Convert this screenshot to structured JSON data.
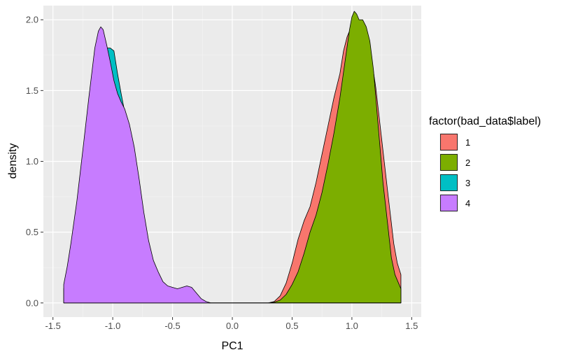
{
  "chart_data": {
    "type": "area",
    "title": "",
    "xlabel": "PC1",
    "ylabel": "density",
    "xlim": [
      -1.58,
      1.58
    ],
    "ylim": [
      -0.1,
      2.1
    ],
    "x_ticks": [
      -1.5,
      -1.0,
      -0.5,
      0.0,
      0.5,
      1.0,
      1.5
    ],
    "x_tick_labels": [
      "-1.5",
      "-1.0",
      "-0.5",
      "0.0",
      "0.5",
      "1.0",
      "1.5"
    ],
    "y_ticks": [
      0.0,
      0.5,
      1.0,
      1.5,
      2.0
    ],
    "y_tick_labels": [
      "0.0",
      "0.5",
      "1.0",
      "1.5",
      "2.0"
    ],
    "grid": true,
    "background": "#ebebeb",
    "legend": {
      "title": "factor(bad_data$label)",
      "position": "right"
    },
    "series": [
      {
        "name": "1",
        "color": "#F8766D",
        "points": [
          [
            -1.41,
            0
          ],
          [
            0.3,
            0
          ],
          [
            0.35,
            0.01
          ],
          [
            0.4,
            0.05
          ],
          [
            0.45,
            0.14
          ],
          [
            0.5,
            0.28
          ],
          [
            0.55,
            0.45
          ],
          [
            0.6,
            0.58
          ],
          [
            0.65,
            0.68
          ],
          [
            0.7,
            0.85
          ],
          [
            0.75,
            1.05
          ],
          [
            0.8,
            1.25
          ],
          [
            0.85,
            1.45
          ],
          [
            0.9,
            1.62
          ],
          [
            0.93,
            1.78
          ],
          [
            0.96,
            1.88
          ],
          [
            1.0,
            1.96
          ],
          [
            1.03,
            2.0
          ],
          [
            1.06,
            2.0
          ],
          [
            1.1,
            1.97
          ],
          [
            1.13,
            1.9
          ],
          [
            1.16,
            1.75
          ],
          [
            1.2,
            1.52
          ],
          [
            1.25,
            1.15
          ],
          [
            1.3,
            0.78
          ],
          [
            1.35,
            0.42
          ],
          [
            1.38,
            0.28
          ],
          [
            1.41,
            0.2
          ]
        ]
      },
      {
        "name": "2",
        "color": "#7CAE00",
        "points": [
          [
            -1.41,
            0
          ],
          [
            0.3,
            0
          ],
          [
            0.35,
            0.005
          ],
          [
            0.4,
            0.02
          ],
          [
            0.45,
            0.06
          ],
          [
            0.5,
            0.13
          ],
          [
            0.55,
            0.22
          ],
          [
            0.6,
            0.35
          ],
          [
            0.65,
            0.5
          ],
          [
            0.7,
            0.62
          ],
          [
            0.75,
            0.78
          ],
          [
            0.8,
            0.98
          ],
          [
            0.85,
            1.2
          ],
          [
            0.9,
            1.45
          ],
          [
            0.95,
            1.75
          ],
          [
            0.98,
            1.93
          ],
          [
            1.0,
            2.02
          ],
          [
            1.02,
            2.06
          ],
          [
            1.04,
            2.04
          ],
          [
            1.06,
            2.0
          ],
          [
            1.09,
            2.0
          ],
          [
            1.12,
            1.95
          ],
          [
            1.15,
            1.85
          ],
          [
            1.18,
            1.65
          ],
          [
            1.2,
            1.45
          ],
          [
            1.23,
            1.15
          ],
          [
            1.26,
            0.85
          ],
          [
            1.3,
            0.55
          ],
          [
            1.33,
            0.32
          ],
          [
            1.36,
            0.2
          ],
          [
            1.39,
            0.14
          ],
          [
            1.41,
            0.1
          ]
        ]
      },
      {
        "name": "3",
        "color": "#00BFC4",
        "points": [
          [
            -1.41,
            0.1
          ],
          [
            -1.38,
            0.22
          ],
          [
            -1.35,
            0.4
          ],
          [
            -1.3,
            0.68
          ],
          [
            -1.25,
            0.98
          ],
          [
            -1.2,
            1.3
          ],
          [
            -1.15,
            1.6
          ],
          [
            -1.12,
            1.74
          ],
          [
            -1.1,
            1.8
          ],
          [
            -1.08,
            1.82
          ],
          [
            -1.05,
            1.8
          ],
          [
            -1.02,
            1.8
          ],
          [
            -0.99,
            1.78
          ],
          [
            -0.96,
            1.62
          ],
          [
            -0.93,
            1.48
          ],
          [
            -0.9,
            1.35
          ],
          [
            -0.86,
            1.2
          ],
          [
            -0.82,
            1.02
          ],
          [
            -0.78,
            0.82
          ],
          [
            -0.74,
            0.62
          ],
          [
            -0.7,
            0.42
          ],
          [
            -0.66,
            0.26
          ],
          [
            -0.62,
            0.17
          ],
          [
            -0.58,
            0.12
          ],
          [
            -0.54,
            0.08
          ],
          [
            -0.5,
            0.05
          ],
          [
            -0.45,
            0.02
          ],
          [
            -0.4,
            0.01
          ],
          [
            -0.3,
            0
          ],
          [
            1.41,
            0
          ]
        ]
      },
      {
        "name": "4",
        "color": "#C77CFF",
        "points": [
          [
            -1.41,
            0.13
          ],
          [
            -1.38,
            0.26
          ],
          [
            -1.35,
            0.42
          ],
          [
            -1.3,
            0.72
          ],
          [
            -1.25,
            1.08
          ],
          [
            -1.2,
            1.45
          ],
          [
            -1.15,
            1.8
          ],
          [
            -1.12,
            1.92
          ],
          [
            -1.1,
            1.95
          ],
          [
            -1.08,
            1.93
          ],
          [
            -1.05,
            1.82
          ],
          [
            -1.02,
            1.7
          ],
          [
            -0.99,
            1.57
          ],
          [
            -0.96,
            1.48
          ],
          [
            -0.93,
            1.42
          ],
          [
            -0.9,
            1.37
          ],
          [
            -0.86,
            1.26
          ],
          [
            -0.82,
            1.1
          ],
          [
            -0.78,
            0.88
          ],
          [
            -0.74,
            0.64
          ],
          [
            -0.7,
            0.44
          ],
          [
            -0.66,
            0.3
          ],
          [
            -0.62,
            0.22
          ],
          [
            -0.58,
            0.15
          ],
          [
            -0.54,
            0.12
          ],
          [
            -0.5,
            0.11
          ],
          [
            -0.46,
            0.1
          ],
          [
            -0.42,
            0.11
          ],
          [
            -0.38,
            0.12
          ],
          [
            -0.34,
            0.11
          ],
          [
            -0.3,
            0.07
          ],
          [
            -0.26,
            0.03
          ],
          [
            -0.22,
            0.01
          ],
          [
            -0.18,
            0
          ],
          [
            1.41,
            0
          ]
        ]
      }
    ],
    "draw_order": [
      "1",
      "2",
      "3",
      "4"
    ]
  }
}
